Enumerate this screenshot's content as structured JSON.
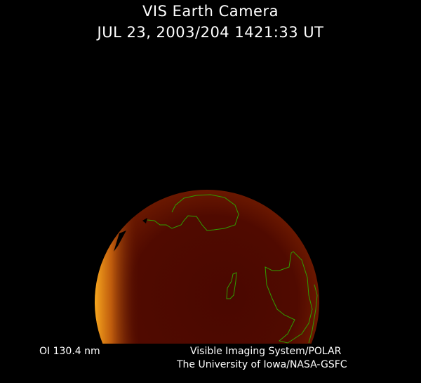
{
  "header": {
    "title": "VIS Earth Camera",
    "subtitle": "JUL 23, 2003/204 1421:33 UT"
  },
  "footer": {
    "band": "OI  130.4 nm",
    "credit_line1": "Visible Imaging System/POLAR",
    "credit_line2": "The University of Iowa/NASA-GSFC"
  },
  "colors": {
    "background": "#000000",
    "disk": "#4a0a00",
    "glow": "#f0a020",
    "coastline": "#2fa000"
  }
}
